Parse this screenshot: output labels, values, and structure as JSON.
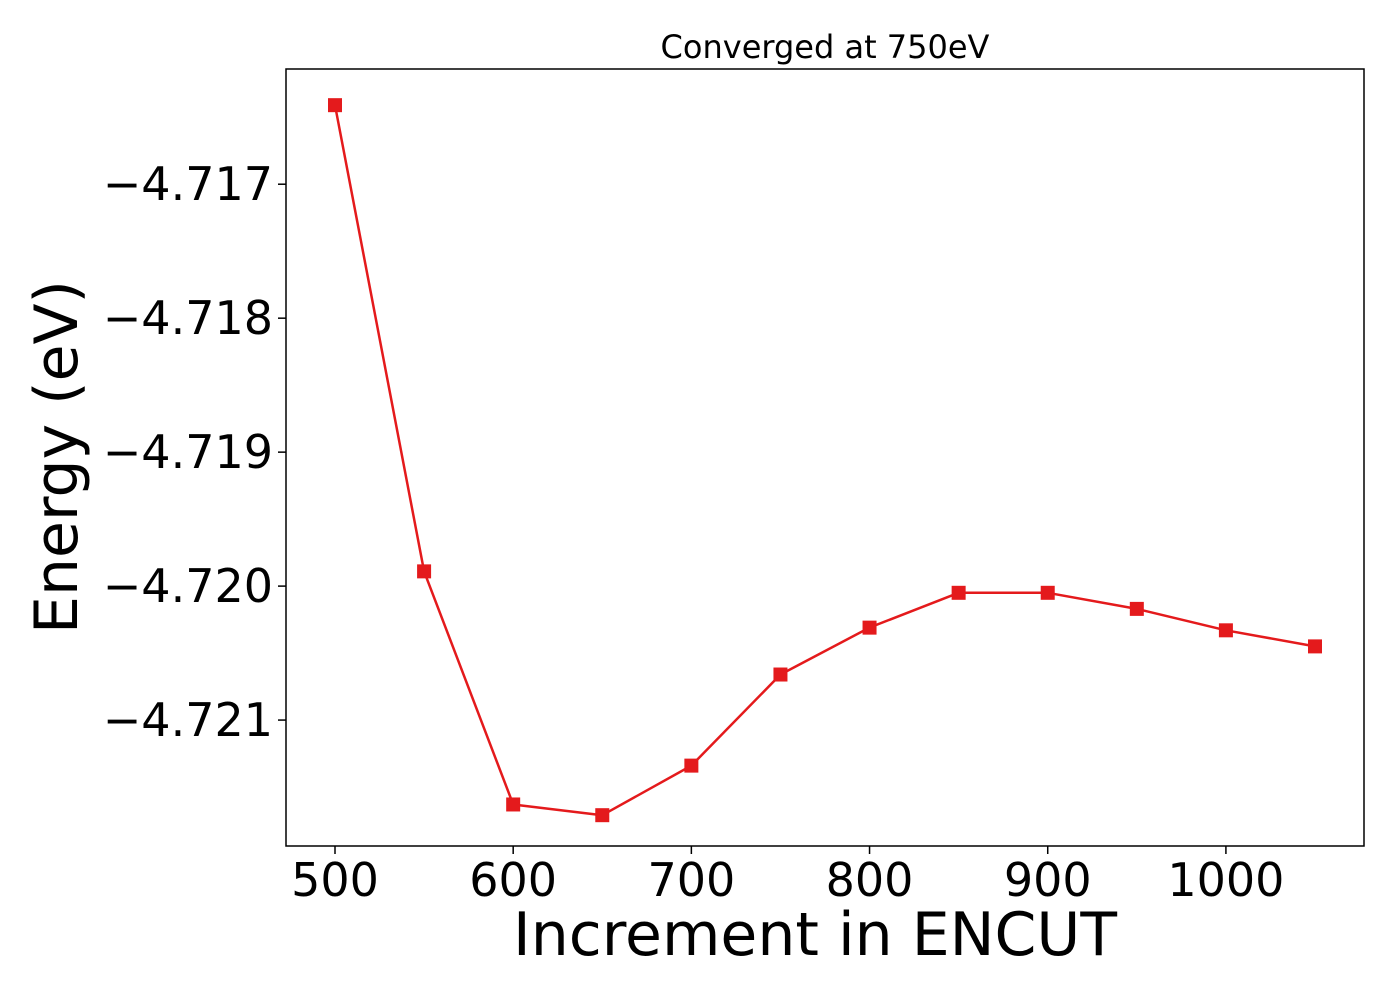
{
  "chart_data": {
    "type": "line",
    "title": "Converged at 750eV",
    "xlabel": "Increment in ENCUT",
    "ylabel": "Energy (eV)",
    "x": [
      500,
      550,
      600,
      650,
      700,
      750,
      800,
      850,
      900,
      950,
      1000,
      1050
    ],
    "series": [
      {
        "values": [
          -4.71641,
          -4.71989,
          -4.72163,
          -4.72171,
          -4.72134,
          -4.72066,
          -4.72031,
          -4.72005,
          -4.72005,
          -4.72017,
          -4.72033,
          -4.72045
        ],
        "color": "#e41a1c",
        "marker": "square"
      }
    ],
    "xticks": [
      500,
      600,
      700,
      800,
      900,
      1000
    ],
    "xtick_labels": [
      "500",
      "600",
      "700",
      "800",
      "900",
      "1000"
    ],
    "yticks": [
      -4.721,
      -4.72,
      -4.719,
      -4.718,
      -4.717
    ],
    "ytick_labels": [
      "−4.721",
      "−4.720",
      "−4.719",
      "−4.718",
      "−4.717"
    ],
    "xlim": [
      472.5,
      1077.5
    ],
    "ylim": [
      -4.72194,
      -4.71614
    ],
    "grid": false
  }
}
